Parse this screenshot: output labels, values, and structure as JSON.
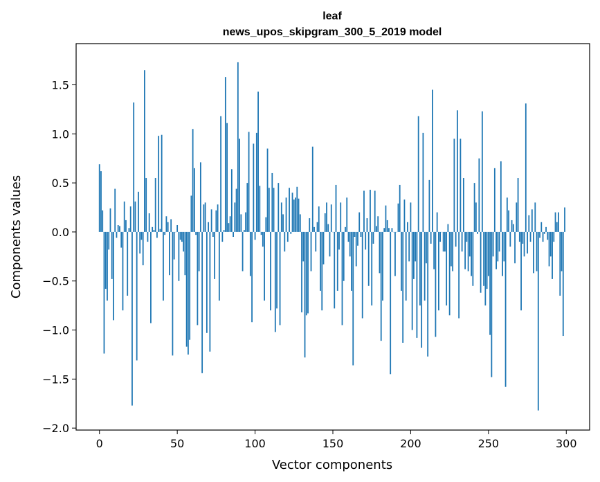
{
  "chart_data": {
    "type": "bar",
    "title_lines": [
      "leaf",
      "news_upos_skipgram_300_5_2019 model"
    ],
    "xlabel": "Vector components",
    "ylabel": "Components values",
    "xlim": [
      -15,
      315
    ],
    "ylim": [
      -2.02,
      1.92
    ],
    "xticks": [
      0,
      50,
      100,
      150,
      200,
      250,
      300
    ],
    "xtick_labels": [
      "0",
      "50",
      "100",
      "150",
      "200",
      "250",
      "300"
    ],
    "yticks": [
      -2.0,
      -1.5,
      -1.0,
      -0.5,
      0.0,
      0.5,
      1.0,
      1.5
    ],
    "ytick_labels": [
      "−2.0",
      "−1.5",
      "−1.0",
      "−0.5",
      "0.0",
      "0.5",
      "1.0",
      "1.5"
    ],
    "grid": false,
    "bar_color": "#1f77b4",
    "values": [
      0.69,
      0.62,
      0.22,
      -1.24,
      -0.58,
      -0.7,
      -0.18,
      0.24,
      -0.48,
      -0.9,
      0.44,
      -0.06,
      0.07,
      0.06,
      -0.16,
      -0.8,
      0.31,
      0.12,
      -0.65,
      0.04,
      0.26,
      -1.77,
      1.32,
      0.31,
      -1.31,
      0.41,
      -0.22,
      -0.08,
      -0.34,
      1.65,
      0.55,
      -0.1,
      0.19,
      -0.93,
      0.05,
      0.02,
      0.55,
      -0.06,
      0.98,
      0.03,
      0.99,
      -0.7,
      -0.03,
      0.16,
      0.1,
      -0.44,
      0.13,
      -1.26,
      -0.28,
      0.0,
      0.07,
      -0.5,
      -0.08,
      -0.1,
      -0.2,
      -0.44,
      -1.17,
      -1.25,
      -1.1,
      0.37,
      1.05,
      0.65,
      -0.03,
      -0.95,
      -0.4,
      0.71,
      -1.44,
      0.28,
      0.3,
      -1.03,
      0.1,
      -1.22,
      0.23,
      -0.05,
      -0.48,
      0.22,
      0.28,
      -0.7,
      1.18,
      -0.1,
      0.02,
      1.58,
      1.11,
      0.09,
      0.16,
      0.64,
      -0.05,
      0.3,
      0.44,
      1.73,
      0.95,
      0.18,
      -0.4,
      0.02,
      0.2,
      0.5,
      1.02,
      -0.45,
      -0.92,
      0.9,
      -0.08,
      1.01,
      1.43,
      0.47,
      -0.03,
      -0.15,
      -0.7,
      0.15,
      0.85,
      0.45,
      -0.8,
      0.6,
      0.45,
      -1.02,
      -0.78,
      0.5,
      -0.95,
      0.3,
      0.18,
      -0.2,
      0.35,
      -0.1,
      0.45,
      -0.02,
      0.4,
      0.33,
      0.35,
      0.46,
      0.34,
      0.18,
      -0.82,
      -0.3,
      -1.28,
      -0.85,
      -0.83,
      0.14,
      -0.4,
      0.87,
      0.05,
      -0.2,
      0.1,
      0.26,
      -0.6,
      -0.8,
      -0.33,
      0.19,
      0.3,
      0.08,
      -0.25,
      0.28,
      0.0,
      -0.78,
      0.48,
      -0.6,
      -0.18,
      0.3,
      -0.95,
      -0.5,
      0.05,
      0.35,
      -0.1,
      -0.25,
      -0.6,
      -1.36,
      -0.05,
      -0.35,
      -0.14,
      0.2,
      -0.05,
      -0.88,
      0.42,
      -0.18,
      0.14,
      -0.55,
      0.43,
      -0.75,
      -0.12,
      0.42,
      0.06,
      0.16,
      -0.42,
      -1.11,
      -0.7,
      0.04,
      0.27,
      0.12,
      0.04,
      -1.45,
      0.04,
      0.0,
      -0.45,
      0.0,
      0.29,
      0.48,
      -0.6,
      -1.13,
      0.33,
      -0.7,
      0.1,
      -0.3,
      0.3,
      -1.0,
      -0.48,
      -0.3,
      -1.08,
      1.18,
      -0.75,
      -1.18,
      1.01,
      -0.7,
      -0.32,
      -1.27,
      0.53,
      -0.12,
      1.45,
      -0.38,
      -1.07,
      0.2,
      -0.8,
      -0.1,
      0.0,
      -0.2,
      -0.2,
      -0.75,
      0.08,
      -0.85,
      -0.35,
      -0.4,
      0.95,
      -0.15,
      1.24,
      -0.88,
      0.95,
      -0.2,
      0.55,
      -0.38,
      -0.1,
      -0.4,
      -0.25,
      -0.45,
      -0.55,
      0.5,
      0.3,
      -0.02,
      0.75,
      -0.62,
      1.23,
      -0.55,
      -0.75,
      -0.58,
      -0.45,
      -1.05,
      -1.48,
      -0.25,
      0.65,
      -0.38,
      -0.3,
      -0.2,
      0.72,
      -0.45,
      -0.3,
      -1.58,
      0.35,
      0.22,
      -0.15,
      0.12,
      0.08,
      -0.32,
      0.3,
      0.55,
      -0.1,
      -0.8,
      -0.12,
      -0.25,
      1.31,
      -0.22,
      0.17,
      -0.1,
      0.23,
      -0.42,
      0.3,
      -0.4,
      -1.82,
      -0.06,
      0.1,
      -0.1,
      -0.02,
      0.05,
      -0.08,
      -0.35,
      -0.25,
      -0.48,
      -0.1,
      0.2,
      0.1,
      0.2,
      -0.65,
      -0.4,
      -1.06,
      0.25
    ]
  }
}
